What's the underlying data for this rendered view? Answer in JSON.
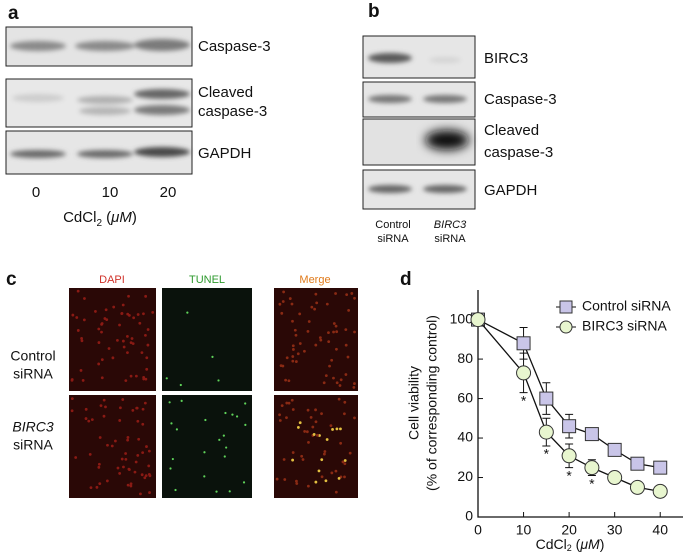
{
  "panel_a": {
    "label": "a",
    "band_labels": [
      "Caspase-3",
      "Cleaved",
      "caspase-3",
      "GAPDH"
    ],
    "lanes": [
      "0",
      "10",
      "20"
    ],
    "x_label": {
      "main": "CdCl",
      "sub": "2",
      "open": " (",
      "unit": "μM",
      "close": ")"
    }
  },
  "panel_b": {
    "label": "b",
    "band_labels": [
      "BIRC3",
      "Caspase-3",
      "Cleaved",
      "caspase-3",
      "GAPDH"
    ],
    "lanes": [
      [
        "Control",
        "siRNA"
      ],
      [
        "BIRC3",
        "siRNA"
      ]
    ]
  },
  "panel_c": {
    "label": "c",
    "columns": [
      "DAPI",
      "TUNEL",
      "Merge"
    ],
    "rows": [
      [
        "Control",
        "siRNA"
      ],
      [
        "BIRC3",
        "siRNA"
      ]
    ]
  },
  "chart_data": {
    "type": "line",
    "panel_label": "d",
    "x": [
      0,
      10,
      15,
      20,
      25,
      30,
      35,
      40
    ],
    "series": [
      {
        "name": "Control siRNA",
        "color": "#c9c5e8",
        "marker": "square",
        "values": [
          100,
          88,
          60,
          46,
          42,
          34,
          27,
          25
        ],
        "errors": [
          3,
          8,
          8,
          6,
          3,
          2,
          2,
          3
        ]
      },
      {
        "name": "BIRC3 siRNA",
        "color": "#e8f6cf",
        "marker": "circle",
        "values": [
          100,
          73,
          43,
          31,
          25,
          20,
          15,
          13
        ],
        "errors": [
          3,
          10,
          7,
          6,
          4,
          2,
          2,
          2
        ]
      }
    ],
    "xlim": [
      0,
      45
    ],
    "ylim": [
      0,
      115
    ],
    "xticks": [
      0,
      10,
      20,
      30,
      40
    ],
    "yticks": [
      0,
      20,
      40,
      60,
      80,
      100
    ],
    "x_label": {
      "main": "CdCl",
      "sub": "2",
      "open": " (",
      "unit": "μM",
      "close": ")"
    },
    "y_label": [
      "Cell viability",
      "(% of corresponding control)"
    ],
    "significance": {
      "text": "*",
      "x": [
        10,
        15,
        20,
        25
      ]
    },
    "legend": "upper right"
  }
}
